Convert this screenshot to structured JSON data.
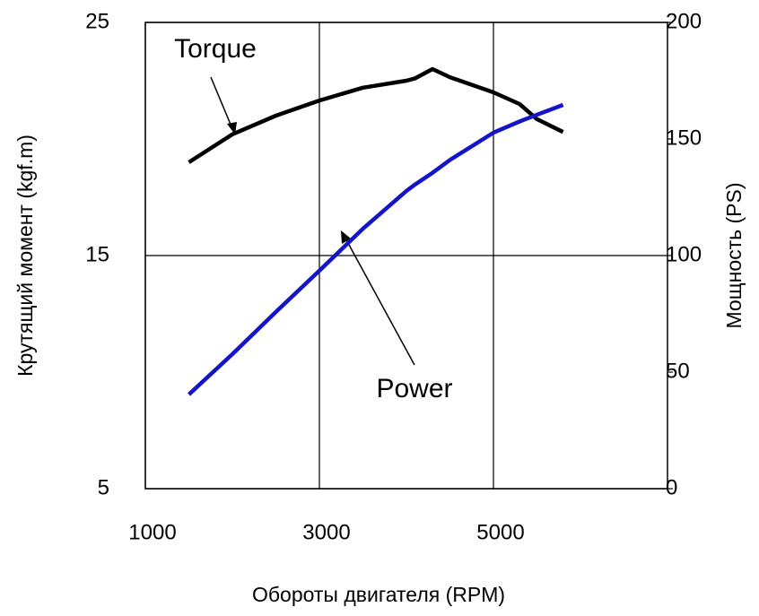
{
  "chart_data": {
    "type": "line",
    "x_label": "Обороты двигателя (RPM)",
    "y_label": "Крутящий момент (kgf.m)",
    "y2_label": "Мощность (PS)",
    "x": [
      1500,
      2000,
      2500,
      3000,
      3500,
      4000,
      4100,
      4300,
      4500,
      5000,
      5300,
      5500,
      5800
    ],
    "series": [
      {
        "name": "Torque",
        "color": "#000000",
        "values": [
          19.0,
          20.2,
          21.0,
          21.65,
          22.2,
          22.5,
          22.6,
          23.0,
          22.65,
          22.0,
          21.5,
          20.85,
          20.3
        ]
      },
      {
        "name": "Power",
        "color": "#1414c8",
        "axis": "y2",
        "values": [
          40.4,
          57.7,
          75.8,
          93.5,
          111.5,
          127.7,
          130.5,
          135.5,
          141,
          152.7,
          157.5,
          160.4,
          164.6
        ]
      }
    ],
    "xlim": [
      1000,
      7000
    ],
    "xticks": [
      1000,
      3000,
      5000
    ],
    "ylim": [
      5,
      25
    ],
    "yticks": [
      5,
      15,
      25
    ],
    "y2lim": [
      0,
      200
    ],
    "y2ticks": [
      0,
      50,
      100,
      150,
      200
    ],
    "grid": true
  }
}
